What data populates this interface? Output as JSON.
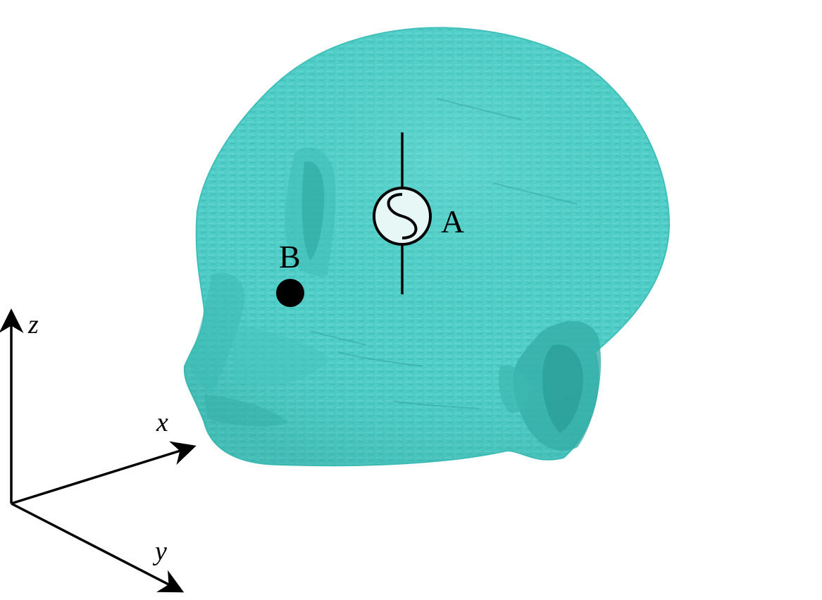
{
  "labels": {
    "source": "A",
    "point": "B"
  },
  "axes": {
    "x": "x",
    "y": "y",
    "z": "z"
  },
  "colors": {
    "head_fill": "#4fcdc6",
    "head_dark": "#36b3ac",
    "head_light": "#7fe3dc",
    "source_fill": "#e6f7f6",
    "ink": "#000000"
  },
  "icons": {
    "source_symbol": "ac-source-icon",
    "point_marker": "dot-marker-icon"
  }
}
